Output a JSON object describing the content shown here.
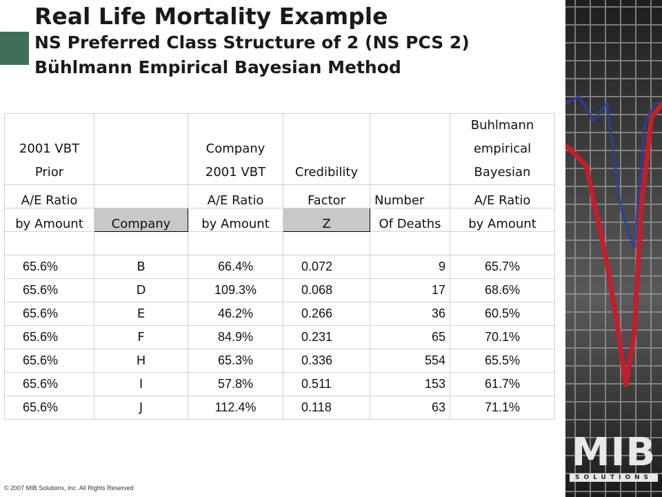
{
  "slide": {
    "title": "Real Life Mortality Example",
    "subtitle_1": "NS Preferred Class Structure of 2 (NS PCS 2)",
    "subtitle_2": "Bühlmann Empirical Bayesian Method",
    "footer": "© 2007 MIB Solutions, Inc. All Rights Reserved",
    "logo": {
      "text": "MIB",
      "subtext": "SOLUTIONS"
    },
    "accent_color": "#3f6f58"
  },
  "table": {
    "header": {
      "prior": [
        "2001 VBT",
        "Prior",
        "A/E  Ratio",
        "by Amount"
      ],
      "company": "Company",
      "ae": [
        "Company",
        "2001 VBT",
        "A/E  Ratio",
        "by Amount"
      ],
      "credibility": [
        "Credibility",
        "Factor",
        "Z"
      ],
      "deaths": [
        "Number",
        "Of Deaths"
      ],
      "buhlmann": [
        "Buhlmann",
        "empirical",
        "Bayesian",
        "A/E  Ratio",
        "by Amount"
      ]
    },
    "rows": [
      {
        "prior": "65.6%",
        "company": "B",
        "ae": "66.4%",
        "z": "0.072",
        "deaths": "9",
        "result": "65.7%"
      },
      {
        "prior": "65.6%",
        "company": "D",
        "ae": "109.3%",
        "z": "0.068",
        "deaths": "17",
        "result": "68.6%"
      },
      {
        "prior": "65.6%",
        "company": "E",
        "ae": "46.2%",
        "z": "0.266",
        "deaths": "36",
        "result": "60.5%"
      },
      {
        "prior": "65.6%",
        "company": "F",
        "ae": "84.9%",
        "z": "0.231",
        "deaths": "65",
        "result": "70.1%"
      },
      {
        "prior": "65.6%",
        "company": "H",
        "ae": "65.3%",
        "z": "0.336",
        "deaths": "554",
        "result": "65.5%"
      },
      {
        "prior": "65.6%",
        "company": "I",
        "ae": "57.8%",
        "z": "0.511",
        "deaths": "153",
        "result": "61.7%"
      },
      {
        "prior": "65.6%",
        "company": "J",
        "ae": "112.4%",
        "z": "0.118",
        "deaths": "63",
        "result": "71.1%"
      }
    ]
  }
}
